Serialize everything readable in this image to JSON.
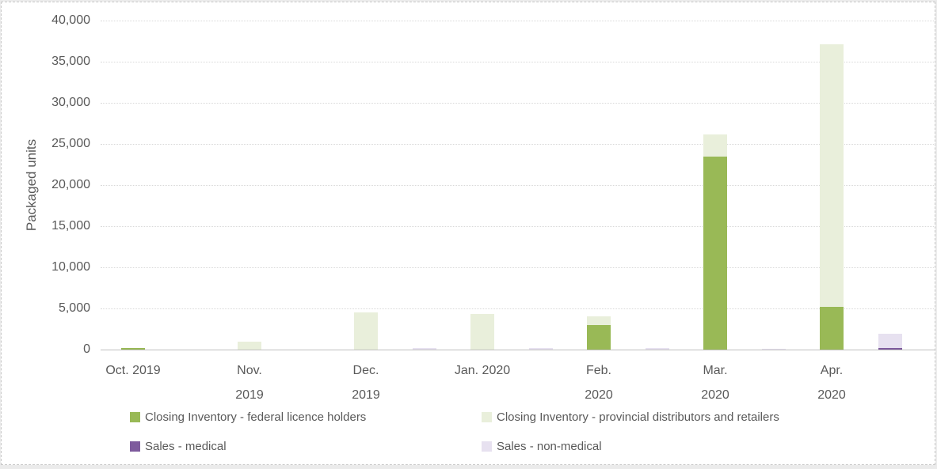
{
  "chart_data": {
    "type": "bar",
    "subtype": "clustered-stacked-columns",
    "title": "",
    "xlabel": "",
    "ylabel": "Packaged units",
    "ylim": [
      0,
      40000
    ],
    "ytick_interval": 5000,
    "ytick_labels": [
      "0",
      "5,000",
      "10,000",
      "15,000",
      "20,000",
      "25,000",
      "30,000",
      "35,000",
      "40,000"
    ],
    "grid": "horizontal-dotted",
    "legend_position": "bottom",
    "categories": [
      "Oct. 2019",
      "Nov. 2019",
      "Dec. 2019",
      "Jan. 2020",
      "Feb. 2020",
      "Mar. 2020",
      "Apr. 2020"
    ],
    "category_label_lines": [
      [
        "Oct. 2019"
      ],
      [
        "Nov.",
        "2019"
      ],
      [
        "Dec.",
        "2019"
      ],
      [
        "Jan. 2020"
      ],
      [
        "Feb.",
        "2020"
      ],
      [
        "Mar.",
        "2020"
      ],
      [
        "Apr.",
        "2020"
      ]
    ],
    "series": [
      {
        "name": "Closing Inventory - federal licence holders",
        "stack": "inventory",
        "color": "#99b956",
        "values": [
          150,
          0,
          0,
          0,
          3000,
          23500,
          5200
        ]
      },
      {
        "name": "Closing Inventory - provincial distributors and retailers",
        "stack": "inventory",
        "color": "#e9efdb",
        "values": [
          0,
          950,
          4550,
          4300,
          1000,
          2700,
          31900
        ]
      },
      {
        "name": "Sales - medical",
        "stack": "sales",
        "color": "#7e5b9d",
        "values": [
          0,
          0,
          0,
          0,
          0,
          0,
          200
        ]
      },
      {
        "name": "Sales - non-medical",
        "stack": "sales",
        "color": "#e7e1f0",
        "values": [
          0,
          0,
          200,
          200,
          200,
          100,
          1700
        ]
      }
    ],
    "colors": {
      "text": "#595959",
      "gridline": "#d9d9d9",
      "axis_line": "#bfbfbf"
    }
  }
}
